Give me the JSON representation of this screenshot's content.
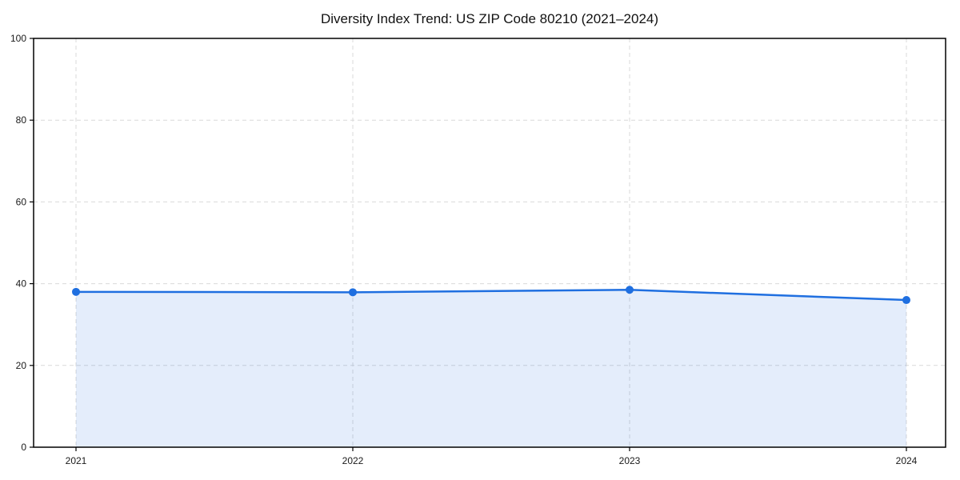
{
  "chart_data": {
    "type": "area",
    "title": "Diversity Index Trend: US ZIP Code 80210 (2021–2024)",
    "x_categories": [
      "2021",
      "2022",
      "2023",
      "2024"
    ],
    "series": [
      {
        "name": "Diversity Index",
        "values": [
          38.0,
          37.9,
          38.5,
          36.0
        ]
      }
    ],
    "xlabel": "",
    "ylabel": "",
    "ylim": [
      0,
      100
    ],
    "yticks": [
      0,
      20,
      40,
      60,
      80,
      100
    ],
    "grid": {
      "horizontal": true,
      "vertical": true,
      "style": "dashed"
    },
    "legend": "none",
    "area_fill_to": 0,
    "colors": {
      "line": "#1f6fe0",
      "marker": "#1f6fe0",
      "fill": "#1f6fe0",
      "fill_opacity": 0.12,
      "grid": "#d9d9d9",
      "axis": "#000000",
      "tick_text": "#1a1a1a",
      "background": "#ffffff"
    }
  }
}
